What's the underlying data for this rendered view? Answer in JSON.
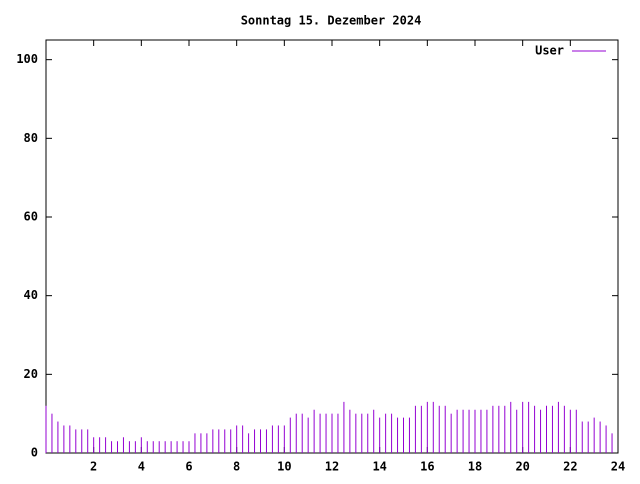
{
  "chart_data": {
    "type": "impulse",
    "title": "Sonntag 15. Dezember 2024",
    "series": [
      {
        "name": "User",
        "color": "#9400d3",
        "x": [
          0,
          0.25,
          0.5,
          0.75,
          1,
          1.25,
          1.5,
          1.75,
          2,
          2.25,
          2.5,
          2.75,
          3,
          3.25,
          3.5,
          3.75,
          4,
          4.25,
          4.5,
          4.75,
          5,
          5.25,
          5.5,
          5.75,
          6,
          6.25,
          6.5,
          6.75,
          7,
          7.25,
          7.5,
          7.75,
          8,
          8.25,
          8.5,
          8.75,
          9,
          9.25,
          9.5,
          9.75,
          10,
          10.25,
          10.5,
          10.75,
          11,
          11.25,
          11.5,
          11.75,
          12,
          12.25,
          12.5,
          12.75,
          13,
          13.25,
          13.5,
          13.75,
          14,
          14.25,
          14.5,
          14.75,
          15,
          15.25,
          15.5,
          15.75,
          16,
          16.25,
          16.5,
          16.75,
          17,
          17.25,
          17.5,
          17.75,
          18,
          18.25,
          18.5,
          18.75,
          19,
          19.25,
          19.5,
          19.75,
          20,
          20.25,
          20.5,
          20.75,
          21,
          21.25,
          21.5,
          21.75,
          22,
          22.25,
          22.5,
          22.75,
          23,
          23.25,
          23.5,
          23.75
        ],
        "values": [
          12,
          10,
          8,
          7,
          7,
          6,
          6,
          6,
          4,
          4,
          4,
          3,
          3,
          4,
          3,
          3,
          4,
          3,
          3,
          3,
          3,
          3,
          3,
          3,
          3,
          5,
          5,
          5,
          6,
          6,
          6,
          6,
          7,
          7,
          5,
          6,
          6,
          6,
          7,
          7,
          7,
          9,
          10,
          10,
          9,
          11,
          10,
          10,
          10,
          10,
          13,
          11,
          10,
          10,
          10,
          11,
          9,
          10,
          10,
          9,
          9,
          9,
          12,
          12,
          13,
          13,
          12,
          12,
          10,
          11,
          11,
          11,
          11,
          11,
          11,
          12,
          12,
          12,
          13,
          11,
          13,
          13,
          12,
          11,
          12,
          12,
          13,
          12,
          11,
          11,
          8,
          8,
          9,
          8,
          7,
          5
        ]
      }
    ],
    "xlim": [
      0,
      24
    ],
    "xticks": [
      2,
      4,
      6,
      8,
      10,
      12,
      14,
      16,
      18,
      20,
      22,
      24
    ],
    "ylim": [
      0,
      105
    ],
    "yticks": [
      0,
      20,
      40,
      60,
      80,
      100
    ],
    "legend": "upper right"
  }
}
